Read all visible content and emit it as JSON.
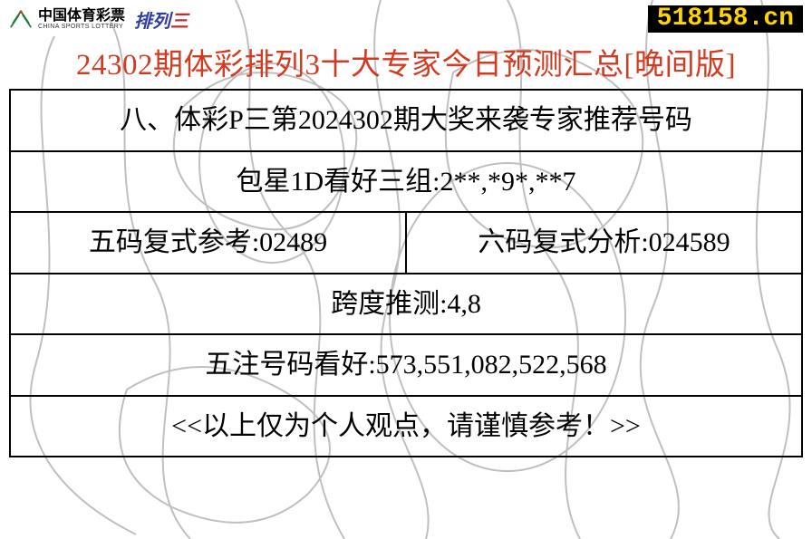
{
  "header": {
    "logo_cn": "中国体育彩票",
    "logo_en": "CHINA SPORTS LOTTERY",
    "logo_pl3": "排列三",
    "pl3_color": "#2f3f9d",
    "pl3_char3_color": "#c92a2a",
    "site_badge": "518158.cn",
    "site_badge_bg": "#000000",
    "site_badge_color": "#ffd400"
  },
  "title": {
    "text": "24302期体彩排列3十大专家今日预测汇总[晚间版]",
    "color": "#d43a1f"
  },
  "table": {
    "border_color": "#000000",
    "text_color": "#000000",
    "rows": {
      "heading": "八、体彩P三第2024302期大奖来袭专家推荐号码",
      "bao_xing": "包星1D看好三组:2**,*9*,**7",
      "five_code": "五码复式参考:02489",
      "six_code": "六码复式分析:024589",
      "kuadu": "跨度推测:4,8",
      "wuzhu": "五注号码看好:573,551,082,522,568",
      "footer": "<<以上仅为个人观点，请谨慎参考！>>"
    }
  },
  "background": {
    "stroke": "#4a4a4a",
    "opacity": 0.35
  }
}
